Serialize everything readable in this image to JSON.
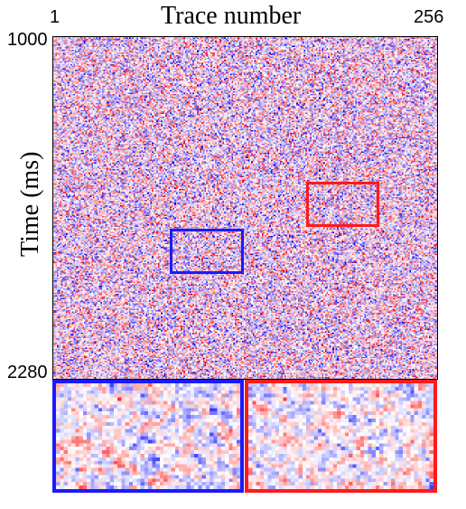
{
  "figure": {
    "x_axis_title": "Trace number",
    "y_axis_title": "Time (ms)",
    "x_tick_left": "1",
    "x_tick_right": "256",
    "y_tick_top": "1000",
    "y_tick_bottom": "2280"
  },
  "colors": {
    "blue_highlight": "#1a1aff",
    "red_highlight": "#ff1a1a",
    "seismic_negative": "#0000ff",
    "seismic_positive": "#ff0000",
    "seismic_zero": "#ffffff"
  },
  "regions": [
    {
      "name": "blue-region",
      "color": "#1a1aff"
    },
    {
      "name": "red-region",
      "color": "#ff1a1a"
    }
  ]
}
